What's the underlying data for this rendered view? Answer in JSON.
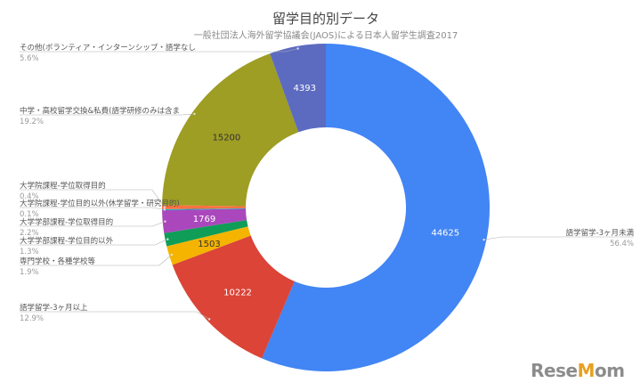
{
  "chart_data": {
    "type": "pie",
    "title": "留学目的別データ",
    "subtitle": "一般社団法人海外留学協議会(JAOS)による日本人留学生調査2017",
    "slices": [
      {
        "name": "語学留学-3ヶ月未満",
        "value": 44625,
        "percent": "56.4%",
        "color": "#4285f4"
      },
      {
        "name": "語学留学-3ヶ月以上",
        "value": 10222,
        "percent": "12.9%",
        "color": "#db4437"
      },
      {
        "name": "専門学校・各種学校等",
        "value": 1503,
        "percent": "1.9%",
        "color": "#f4b400"
      },
      {
        "name": "大学学部課程-学位目的以外",
        "value": 1029,
        "percent": "1.3%",
        "color": "#0f9d58"
      },
      {
        "name": "大学学部課程-学位取得目的",
        "value": 1769,
        "percent": "2.2%",
        "color": "#ab47bc"
      },
      {
        "name": "大学院課程-学位目的以外(休学留学・研究目的)",
        "value": 79,
        "percent": "0.1%",
        "color": "#00acc1"
      },
      {
        "name": "大学院課程-学位取得目的",
        "value": 316,
        "percent": "0.4%",
        "color": "#ff7043"
      },
      {
        "name": "中学・高校留学交換&私費(語学研修のみは含ま",
        "value": 15200,
        "percent": "19.2%",
        "color": "#9e9d24"
      },
      {
        "name": "その他(ボランティア・インターンシップ・語学なし",
        "value": 4393,
        "percent": "5.6%",
        "color": "#5c6bc0"
      }
    ],
    "value_labels": [
      "44625",
      "10222",
      "1503",
      "",
      "1769",
      "",
      "",
      "15200",
      "4393"
    ],
    "value_label_colors": [
      "#ffffff",
      "#ffffff",
      "#333333",
      "",
      "#ffffff",
      "",
      "",
      "#333333",
      "#ffffff"
    ],
    "legend": "none",
    "donut": true
  },
  "logo": {
    "text_a": "Rese",
    "text_m": "M",
    "text_b": "om"
  }
}
